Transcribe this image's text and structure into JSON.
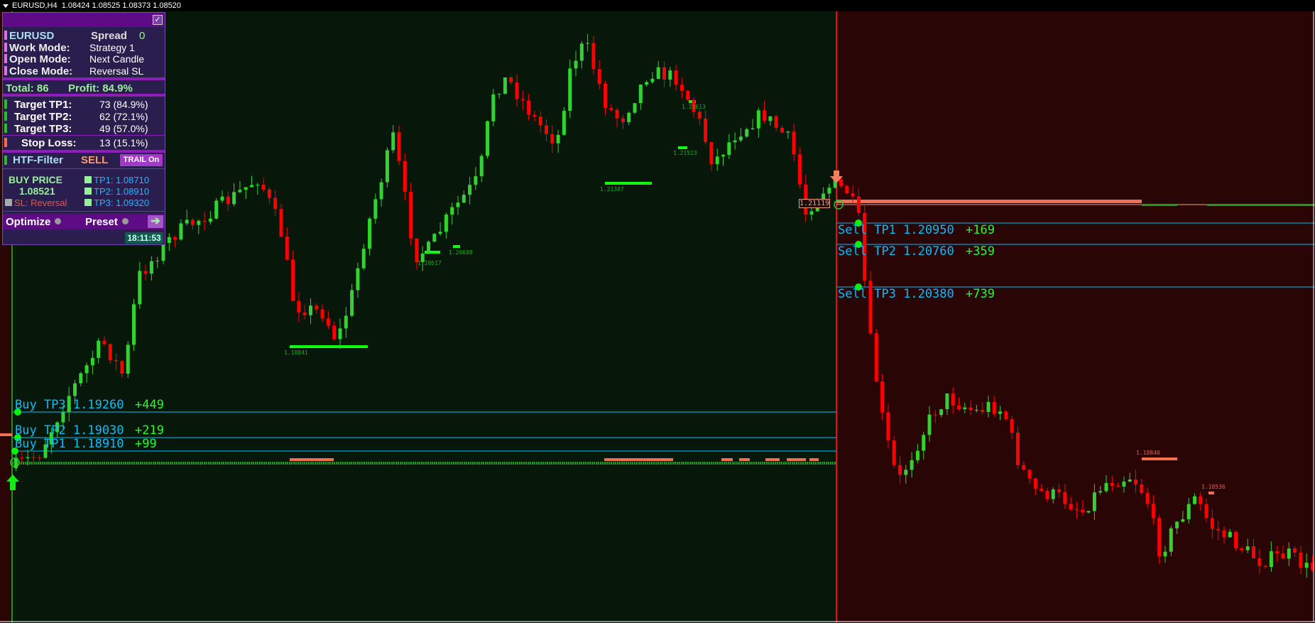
{
  "header": {
    "symbol_timeframe": "EURUSD,H4",
    "ohlc": "1.08424 1.08525 1.08373 1.08520"
  },
  "panel": {
    "symbol": "EURUSD",
    "spread_label": "Spread",
    "spread_value": "0",
    "work_mode_label": "Work Mode:",
    "work_mode": "Strategy 1",
    "open_mode_label": "Open Mode:",
    "open_mode": "Next Candle",
    "close_mode_label": "Close Mode:",
    "close_mode": "Reversal SL",
    "total": "Total: 86",
    "profit": "Profit: 84.9%",
    "targets": [
      {
        "label": "Target TP1:",
        "value": "73 (84.9%)"
      },
      {
        "label": "Target TP2:",
        "value": "62 (72.1%)"
      },
      {
        "label": "Target TP3:",
        "value": "49 (57.0%)"
      }
    ],
    "stop_loss_label": "Stop Loss:",
    "stop_loss_value": "13 (15.1%)",
    "htf_label": "HTF-Filter",
    "htf_value": "SELL",
    "trail_button": "TRAIL On",
    "buy_price_label": "BUY PRICE",
    "buy_price": "1.08521",
    "sl": "SL: Reversal",
    "tp1": "TP1: 1.08710",
    "tp2": "TP2: 1.08910",
    "tp3": "TP3: 1.09320",
    "optimize": "Optimize",
    "preset": "Preset",
    "time": "18:11:53"
  },
  "chart": {
    "colors": {
      "bull": "#32d232",
      "bear": "#ff0000",
      "buy_zone": "#07180a",
      "sell_zone": "#2a0505",
      "tp_line": "#00bfff"
    },
    "sell": {
      "entry_price": "1.21119",
      "tp1": "Sell TP1 1.20950",
      "tp2": "Sell TP2 1.20760",
      "tp3": "Sell TP3 1.20380",
      "pts1": "+169",
      "pts2": "+359",
      "pts3": "+739"
    },
    "buy": {
      "tp1": "Buy TP1 1.18910",
      "tp2": "Buy TP2 1.19030",
      "tp3": "Buy TP3 1.19260",
      "pts1": "+99",
      "pts2": "+219",
      "pts3": "+449"
    },
    "levels": [
      "1.18841",
      "1.20517",
      "1.20688",
      "1.21307",
      "1.21523",
      "1.21613",
      "1.18840",
      "1.18536"
    ]
  }
}
